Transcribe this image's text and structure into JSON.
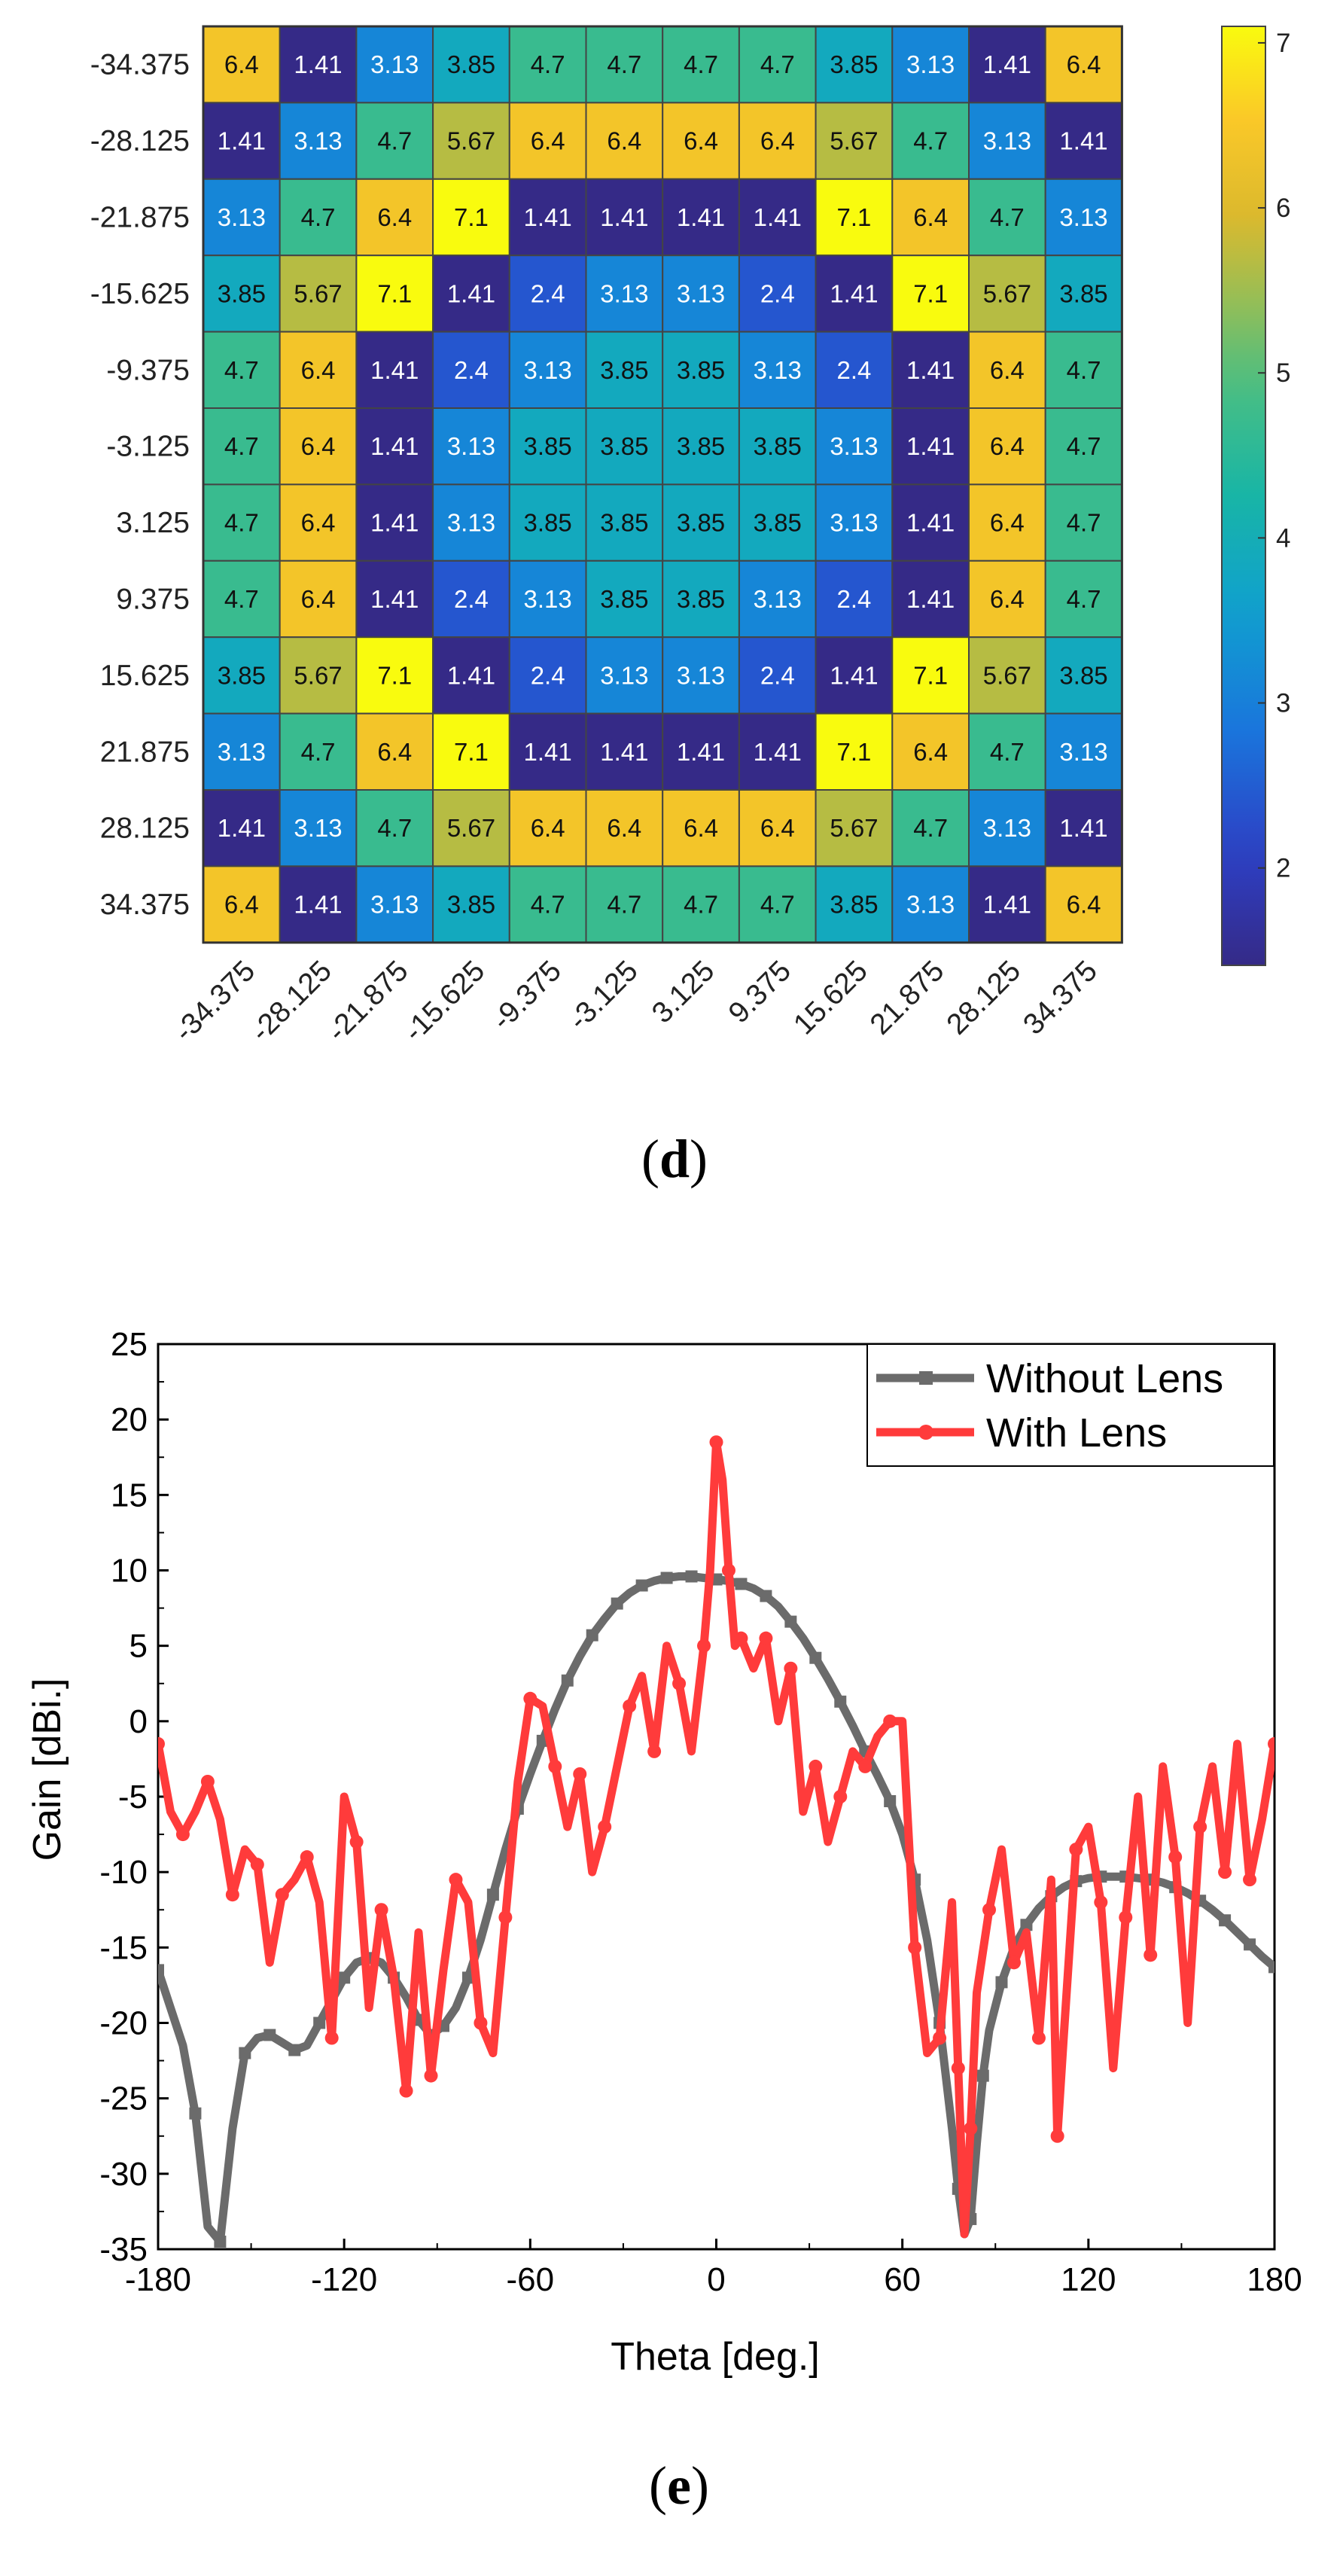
{
  "chart_data": [
    {
      "type": "heatmap",
      "panel_label": "d",
      "row_labels": [
        "-34.375",
        "-28.125",
        "-21.875",
        "-15.625",
        "-9.375",
        "-3.125",
        "3.125",
        "9.375",
        "15.625",
        "21.875",
        "28.125",
        "34.375"
      ],
      "col_labels": [
        "-34.375",
        "-28.125",
        "-21.875",
        "-15.625",
        "-9.375",
        "-3.125",
        "3.125",
        "9.375",
        "15.625",
        "21.875",
        "28.125",
        "34.375"
      ],
      "values": [
        [
          "6.4",
          "1.41",
          "3.13",
          "3.85",
          "4.7",
          "4.7",
          "4.7",
          "4.7",
          "3.85",
          "3.13",
          "1.41",
          "6.4"
        ],
        [
          "1.41",
          "3.13",
          "4.7",
          "5.67",
          "6.4",
          "6.4",
          "6.4",
          "6.4",
          "5.67",
          "4.7",
          "3.13",
          "1.41"
        ],
        [
          "3.13",
          "4.7",
          "6.4",
          "7.1",
          "1.41",
          "1.41",
          "1.41",
          "1.41",
          "7.1",
          "6.4",
          "4.7",
          "3.13"
        ],
        [
          "3.85",
          "5.67",
          "7.1",
          "1.41",
          "2.4",
          "3.13",
          "3.13",
          "2.4",
          "1.41",
          "7.1",
          "5.67",
          "3.85"
        ],
        [
          "4.7",
          "6.4",
          "1.41",
          "2.4",
          "3.13",
          "3.85",
          "3.85",
          "3.13",
          "2.4",
          "1.41",
          "6.4",
          "4.7"
        ],
        [
          "4.7",
          "6.4",
          "1.41",
          "3.13",
          "3.85",
          "3.85",
          "3.85",
          "3.85",
          "3.13",
          "1.41",
          "6.4",
          "4.7"
        ],
        [
          "4.7",
          "6.4",
          "1.41",
          "3.13",
          "3.85",
          "3.85",
          "3.85",
          "3.85",
          "3.13",
          "1.41",
          "6.4",
          "4.7"
        ],
        [
          "4.7",
          "6.4",
          "1.41",
          "2.4",
          "3.13",
          "3.85",
          "3.85",
          "3.13",
          "2.4",
          "1.41",
          "6.4",
          "4.7"
        ],
        [
          "3.85",
          "5.67",
          "7.1",
          "1.41",
          "2.4",
          "3.13",
          "3.13",
          "2.4",
          "1.41",
          "7.1",
          "5.67",
          "3.85"
        ],
        [
          "3.13",
          "4.7",
          "6.4",
          "7.1",
          "1.41",
          "1.41",
          "1.41",
          "1.41",
          "7.1",
          "6.4",
          "4.7",
          "3.13"
        ],
        [
          "1.41",
          "3.13",
          "4.7",
          "5.67",
          "6.4",
          "6.4",
          "6.4",
          "6.4",
          "5.67",
          "4.7",
          "3.13",
          "1.41"
        ],
        [
          "6.4",
          "1.41",
          "3.13",
          "3.85",
          "4.7",
          "4.7",
          "4.7",
          "4.7",
          "3.85",
          "3.13",
          "1.41",
          "6.4"
        ]
      ],
      "colorbar": {
        "ticks": [
          "2",
          "3",
          "4",
          "5",
          "6",
          "7"
        ],
        "range": [
          1.41,
          7.1
        ]
      },
      "colormap": "parula"
    },
    {
      "type": "line",
      "panel_label": "e",
      "xlabel": "Theta [deg.]",
      "ylabel": "Gain [dBi.]",
      "xlim": [
        -180,
        180
      ],
      "ylim": [
        -35,
        25
      ],
      "xticks": [
        "-180",
        "-120",
        "-60",
        "0",
        "60",
        "120",
        "180"
      ],
      "yticks": [
        "25",
        "20",
        "15",
        "10",
        "5",
        "0",
        "-5",
        "-10",
        "-15",
        "-20",
        "-25",
        "-30",
        "-35"
      ],
      "legend_position": "top-right",
      "series": [
        {
          "name": "Without Lens",
          "color": "#6b6b6b",
          "marker": "square",
          "x": [
            -180,
            -172,
            -168,
            -164,
            -160,
            -156,
            -152,
            -148,
            -144,
            -140,
            -136,
            -132,
            -128,
            -124,
            -120,
            -116,
            -112,
            -108,
            -104,
            -100,
            -96,
            -92,
            -88,
            -84,
            -80,
            -76,
            -72,
            -68,
            -64,
            -60,
            -56,
            -52,
            -48,
            -44,
            -40,
            -36,
            -32,
            -28,
            -24,
            -20,
            -16,
            -12,
            -8,
            -4,
            0,
            4,
            8,
            12,
            16,
            20,
            24,
            28,
            32,
            36,
            40,
            44,
            48,
            52,
            56,
            60,
            64,
            68,
            72,
            76,
            78,
            80,
            82,
            84,
            86,
            88,
            92,
            96,
            100,
            104,
            108,
            112,
            116,
            120,
            124,
            128,
            132,
            136,
            140,
            144,
            148,
            152,
            156,
            160,
            164,
            168,
            172,
            176,
            180
          ],
          "y": [
            -16.5,
            -21.5,
            -26,
            -33.5,
            -34.5,
            -27,
            -22,
            -21,
            -20.8,
            -21.3,
            -21.8,
            -21.5,
            -20,
            -18.5,
            -17,
            -16,
            -15.7,
            -16,
            -17,
            -18.3,
            -19.8,
            -20.8,
            -20.2,
            -19,
            -17,
            -14.5,
            -11.5,
            -8.5,
            -5.8,
            -3.5,
            -1.3,
            0.8,
            2.7,
            4.3,
            5.7,
            6.8,
            7.8,
            8.5,
            9,
            9.3,
            9.5,
            9.6,
            9.6,
            9.5,
            9.4,
            9.3,
            9.1,
            8.8,
            8.3,
            7.6,
            6.6,
            5.5,
            4.2,
            2.8,
            1.3,
            -0.3,
            -2,
            -3.6,
            -5.3,
            -7.5,
            -10.5,
            -14.5,
            -20,
            -27,
            -31,
            -34,
            -33,
            -28,
            -23.5,
            -20.5,
            -17.3,
            -15,
            -13.5,
            -12.4,
            -11.6,
            -11,
            -10.6,
            -10.4,
            -10.3,
            -10.3,
            -10.3,
            -10.4,
            -10.5,
            -10.7,
            -11,
            -11.4,
            -11.9,
            -12.5,
            -13.2,
            -14,
            -14.8,
            -15.6,
            -16.3
          ]
        },
        {
          "name": "With Lens",
          "color": "#ff3b3b",
          "marker": "circle",
          "x": [
            -180,
            -176,
            -172,
            -168,
            -164,
            -160,
            -156,
            -152,
            -148,
            -144,
            -140,
            -136,
            -132,
            -128,
            -124,
            -120,
            -116,
            -112,
            -108,
            -104,
            -100,
            -96,
            -92,
            -88,
            -84,
            -80,
            -76,
            -72,
            -68,
            -64,
            -60,
            -56,
            -52,
            -48,
            -44,
            -40,
            -36,
            -32,
            -28,
            -24,
            -20,
            -16,
            -12,
            -8,
            -4,
            -2,
            0,
            2,
            4,
            6,
            8,
            12,
            16,
            20,
            24,
            28,
            32,
            36,
            40,
            44,
            48,
            52,
            56,
            60,
            64,
            68,
            72,
            76,
            78,
            80,
            82,
            84,
            88,
            92,
            96,
            100,
            104,
            108,
            110,
            112,
            116,
            120,
            124,
            128,
            132,
            136,
            140,
            144,
            148,
            152,
            156,
            160,
            164,
            168,
            172,
            176,
            180
          ],
          "y": [
            -1.5,
            -6,
            -7.5,
            -6,
            -4,
            -6.5,
            -11.5,
            -8.5,
            -9.5,
            -16,
            -11.5,
            -10.5,
            -9,
            -12,
            -21,
            -5,
            -8,
            -19,
            -12.5,
            -17,
            -24.5,
            -14,
            -23.5,
            -16.5,
            -10.5,
            -12,
            -20,
            -22,
            -13,
            -4,
            1.5,
            1,
            -3,
            -7,
            -3.5,
            -10,
            -7,
            -3,
            1,
            3,
            -2,
            5,
            2.5,
            -2,
            5,
            10,
            18.5,
            16,
            10,
            5,
            5.5,
            3.5,
            5.5,
            0,
            3.5,
            -6,
            -3,
            -8,
            -5,
            -2,
            -3,
            -1,
            0,
            0,
            -15,
            -22,
            -21,
            -12,
            -23,
            -34,
            -27,
            -18,
            -12.5,
            -8.5,
            -16,
            -14,
            -21,
            -10.5,
            -27.5,
            -21,
            -8.5,
            -7,
            -12,
            -23,
            -13,
            -5,
            -15.5,
            -3,
            -9,
            -20,
            -7,
            -3,
            -10,
            -1.5,
            -10.5,
            -6.5,
            -1.5
          ]
        }
      ]
    }
  ]
}
